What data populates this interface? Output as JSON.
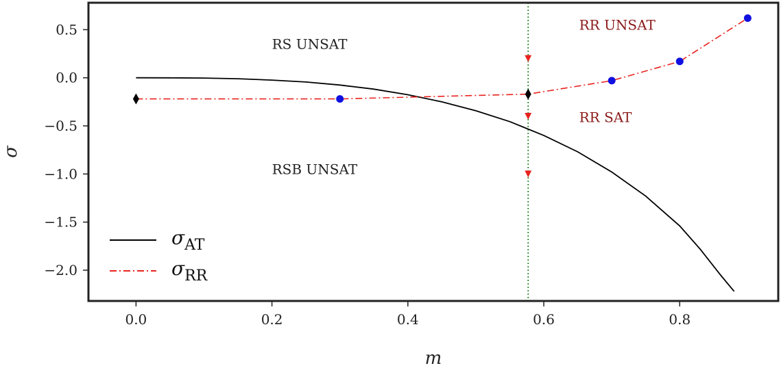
{
  "chart_data": {
    "type": "line",
    "xlabel": "m",
    "ylabel": "σ",
    "xlim": [
      -0.07,
      0.945
    ],
    "ylim": [
      -2.32,
      0.78
    ],
    "xticks": [
      {
        "value": 0.0,
        "label": "0.0"
      },
      {
        "value": 0.2,
        "label": "0.2"
      },
      {
        "value": 0.4,
        "label": "0.4"
      },
      {
        "value": 0.6,
        "label": "0.6"
      },
      {
        "value": 0.8,
        "label": "0.8"
      }
    ],
    "yticks": [
      {
        "value": 0.5,
        "label": "0.5"
      },
      {
        "value": 0.0,
        "label": "0.0"
      },
      {
        "value": -0.5,
        "label": "−0.5"
      },
      {
        "value": -1.0,
        "label": "−1.0"
      },
      {
        "value": -1.5,
        "label": "−1.5"
      },
      {
        "value": -2.0,
        "label": "−2.0"
      }
    ],
    "grid": false,
    "legend_position": "lower-left",
    "series": [
      {
        "name": "σ_AT",
        "legend_main": "σ",
        "legend_sub": "AT",
        "color": "#000000",
        "style": "solid",
        "x": [
          0.0,
          0.05,
          0.1,
          0.15,
          0.2,
          0.25,
          0.3,
          0.35,
          0.4,
          0.45,
          0.5,
          0.55,
          0.6,
          0.65,
          0.7,
          0.75,
          0.8,
          0.83,
          0.86,
          0.88
        ],
        "y": [
          0.0,
          -0.001,
          -0.003,
          -0.01,
          -0.024,
          -0.044,
          -0.075,
          -0.118,
          -0.176,
          -0.25,
          -0.343,
          -0.456,
          -0.6,
          -0.77,
          -0.98,
          -1.23,
          -1.54,
          -1.78,
          -2.05,
          -2.22
        ]
      },
      {
        "name": "σ_RR",
        "legend_main": "σ",
        "legend_sub": "RR",
        "color": "#e8231f",
        "style": "dashdot",
        "x": [
          0.0,
          0.3,
          0.577,
          0.7,
          0.8,
          0.9
        ],
        "y": [
          -0.22,
          -0.22,
          -0.17,
          -0.03,
          0.17,
          0.62
        ]
      }
    ],
    "blue_points": {
      "color": "#1010e0",
      "x": [
        0.3,
        0.7,
        0.8,
        0.9
      ],
      "y": [
        -0.22,
        -0.03,
        0.17,
        0.62
      ]
    },
    "black_diamonds": {
      "color": "#000000",
      "x": [
        0.0,
        0.577
      ],
      "y": [
        -0.22,
        -0.17
      ]
    },
    "red_triangles": {
      "color": "#e8231f",
      "x": [
        0.577,
        0.577,
        0.577
      ],
      "y": [
        0.2,
        -0.4,
        -1.0
      ]
    },
    "vertical_line": {
      "x": 0.577,
      "color": "#2e8b2e",
      "style": "dotted"
    },
    "annotations": [
      {
        "text": "RS UNSAT",
        "x": 0.2,
        "y": 0.35,
        "color": "#222222"
      },
      {
        "text": "RSB UNSAT",
        "x": 0.2,
        "y": -0.95,
        "color": "#222222"
      },
      {
        "text": "RR UNSAT",
        "x": 0.652,
        "y": 0.55,
        "color": "#8b1a1a"
      },
      {
        "text": "RR SAT",
        "x": 0.652,
        "y": -0.41,
        "color": "#8b1a1a"
      }
    ]
  }
}
